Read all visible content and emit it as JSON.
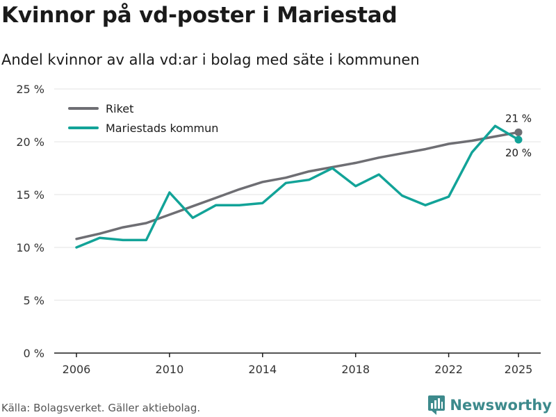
{
  "title": "Kvinnor på vd-poster i Mariestad",
  "subtitle": "Andel kvinnor av alla vd:ar i bolag med säte i kommunen",
  "source": "Källa: Bolagsverket. Gäller aktiebolag.",
  "brand": "Newsworthy",
  "colors": {
    "riket": "#6e6e73",
    "mariestad": "#12a398",
    "grid": "#e3e3e3",
    "axis": "#1a1a1a",
    "brand": "#3d8a8c"
  },
  "chart_data": {
    "type": "line",
    "title": "Kvinnor på vd-poster i Mariestad",
    "subtitle": "Andel kvinnor av alla vd:ar i bolag med säte i kommunen",
    "xlabel": "",
    "ylabel": "",
    "x": [
      2006,
      2007,
      2008,
      2009,
      2010,
      2011,
      2012,
      2013,
      2014,
      2015,
      2016,
      2017,
      2018,
      2019,
      2020,
      2021,
      2022,
      2023,
      2024,
      2025
    ],
    "xlim": [
      2006,
      2025
    ],
    "ylim": [
      0,
      25
    ],
    "grid": true,
    "legend_position": "top-left",
    "x_ticks": [
      {
        "value": 2006,
        "label": "2006"
      },
      {
        "value": 2010,
        "label": "2010"
      },
      {
        "value": 2014,
        "label": "2014"
      },
      {
        "value": 2018,
        "label": "2018"
      },
      {
        "value": 2022,
        "label": "2022"
      },
      {
        "value": 2025,
        "label": "2025"
      }
    ],
    "y_ticks": [
      {
        "value": 0,
        "label": "0 %"
      },
      {
        "value": 5,
        "label": "5 %"
      },
      {
        "value": 10,
        "label": "10 %"
      },
      {
        "value": 15,
        "label": "15 %"
      },
      {
        "value": 20,
        "label": "20 %"
      },
      {
        "value": 25,
        "label": "25 %"
      }
    ],
    "series": [
      {
        "key": "riket",
        "name": "Riket",
        "color": "#6e6e73",
        "values": [
          10.8,
          11.3,
          11.9,
          12.3,
          13.1,
          13.9,
          14.7,
          15.5,
          16.2,
          16.6,
          17.2,
          17.6,
          18.0,
          18.5,
          18.9,
          19.3,
          19.8,
          20.1,
          20.5,
          20.9
        ],
        "end_label": "21 %",
        "end_label_side": "above"
      },
      {
        "key": "mariestad",
        "name": "Mariestads kommun",
        "color": "#12a398",
        "values": [
          10.0,
          10.9,
          10.7,
          10.7,
          15.2,
          12.8,
          14.0,
          14.0,
          14.2,
          16.1,
          16.4,
          17.5,
          15.8,
          16.9,
          14.9,
          14.0,
          14.8,
          19.0,
          21.5,
          20.2
        ],
        "end_label": "20 %",
        "end_label_side": "below"
      }
    ]
  }
}
